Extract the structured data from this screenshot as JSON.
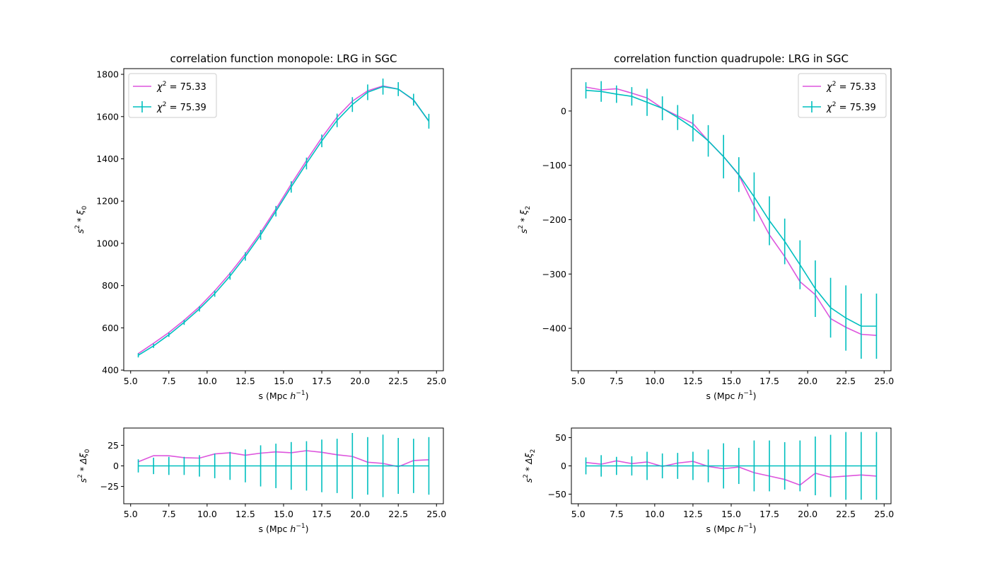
{
  "chart_data": [
    {
      "type": "line",
      "title": "correlation function monopole: LRG in SGC",
      "xlabel_html": "s (Mpc <tspan font-style='italic'>h</tspan><tspan dy='-6' font-size='9'>−1</tspan><tspan dy='6'>)</tspan>",
      "xlabel": "s (Mpc h^-1)",
      "ylabel": "s^2 * ξ0",
      "xlim": [
        4.55,
        25.45
      ],
      "ylim": [
        397,
        1827
      ],
      "xticks": [
        5.0,
        7.5,
        10.0,
        12.5,
        15.0,
        17.5,
        20.0,
        22.5,
        25.0
      ],
      "xtick_labels": [
        "5.0",
        "7.5",
        "10.0",
        "12.5",
        "15.0",
        "17.5",
        "20.0",
        "22.5",
        "25.0"
      ],
      "yticks": [
        400,
        600,
        800,
        1000,
        1200,
        1400,
        1600,
        1800
      ],
      "ytick_labels": [
        "400",
        "600",
        "800",
        "1000",
        "1200",
        "1400",
        "1600",
        "1800"
      ],
      "legend_position": "upper-left",
      "x": [
        5.5,
        6.5,
        7.5,
        8.5,
        9.5,
        10.5,
        11.5,
        12.5,
        13.5,
        14.5,
        15.5,
        16.5,
        17.5,
        18.5,
        19.5,
        20.5,
        21.5,
        22.5,
        23.5,
        24.5
      ],
      "series": [
        {
          "name": "χ² = 75.33",
          "color": "#dd55dd",
          "errorbars": false,
          "values": [
            478,
            527,
            578,
            636,
            700,
            775,
            858,
            950,
            1052,
            1163,
            1280,
            1392,
            1500,
            1598,
            1673,
            1722,
            1745,
            1730,
            1678,
            1578
          ]
        },
        {
          "name": "χ² = 75.39",
          "color": "#00bfbf",
          "errorbars": true,
          "values": [
            470,
            515,
            567,
            626,
            690,
            762,
            845,
            938,
            1040,
            1152,
            1267,
            1378,
            1485,
            1582,
            1657,
            1715,
            1742,
            1730,
            1680,
            1578
          ],
          "errors": [
            10,
            10,
            10,
            12,
            13,
            15,
            17,
            20,
            23,
            25,
            27,
            28,
            30,
            32,
            35,
            37,
            38,
            33,
            28,
            35
          ]
        }
      ]
    },
    {
      "type": "line",
      "title": "correlation function quadrupole: LRG in SGC",
      "xlabel": "s (Mpc h^-1)",
      "ylabel": "s^2 * ξ2",
      "xlim": [
        4.55,
        25.45
      ],
      "ylim": [
        -478,
        78
      ],
      "xticks": [
        5.0,
        7.5,
        10.0,
        12.5,
        15.0,
        17.5,
        20.0,
        22.5,
        25.0
      ],
      "xtick_labels": [
        "5.0",
        "7.5",
        "10.0",
        "12.5",
        "15.0",
        "17.5",
        "20.0",
        "22.5",
        "25.0"
      ],
      "yticks": [
        -400,
        -300,
        -200,
        -100,
        0
      ],
      "ytick_labels": [
        "−400",
        "−300",
        "−200",
        "−100",
        "0"
      ],
      "legend_position": "upper-right",
      "x": [
        5.5,
        6.5,
        7.5,
        8.5,
        9.5,
        10.5,
        11.5,
        12.5,
        13.5,
        14.5,
        15.5,
        16.5,
        17.5,
        18.5,
        19.5,
        20.5,
        21.5,
        22.5,
        23.5,
        24.5
      ],
      "series": [
        {
          "name": "χ² = 75.33",
          "color": "#dd55dd",
          "errorbars": false,
          "values": [
            44,
            39,
            41,
            33,
            24,
            5,
            -9,
            -23,
            -55,
            -84,
            -118,
            -175,
            -228,
            -268,
            -314,
            -338,
            -382,
            -398,
            -411,
            -413
          ]
        },
        {
          "name": "χ² = 75.39",
          "color": "#00bfbf",
          "errorbars": true,
          "values": [
            38,
            36,
            31,
            27,
            16,
            5,
            -12,
            -31,
            -55,
            -84,
            -117,
            -158,
            -202,
            -240,
            -283,
            -327,
            -362,
            -381,
            -396,
            -396
          ],
          "errors": [
            15,
            19,
            16,
            17,
            25,
            22,
            23,
            25,
            29,
            40,
            32,
            45,
            45,
            42,
            45,
            52,
            55,
            60,
            60,
            60
          ]
        }
      ]
    },
    {
      "type": "line",
      "title": "",
      "xlabel": "s (Mpc h^-1)",
      "ylabel": "s^2 * Δξ0",
      "xlim": [
        4.55,
        25.45
      ],
      "ylim": [
        -46,
        46
      ],
      "xticks": [
        5.0,
        7.5,
        10.0,
        12.5,
        15.0,
        17.5,
        20.0,
        22.5,
        25.0
      ],
      "xtick_labels": [
        "5.0",
        "7.5",
        "10.0",
        "12.5",
        "15.0",
        "17.5",
        "20.0",
        "22.5",
        "25.0"
      ],
      "yticks": [
        -25,
        0,
        25
      ],
      "ytick_labels": [
        "−25",
        "0",
        "25"
      ],
      "x": [
        5.5,
        6.5,
        7.5,
        8.5,
        9.5,
        10.5,
        11.5,
        12.5,
        13.5,
        14.5,
        15.5,
        16.5,
        17.5,
        18.5,
        19.5,
        20.5,
        21.5,
        22.5,
        23.5,
        24.5
      ],
      "series": [
        {
          "color": "#dd55dd",
          "errorbars": false,
          "values": [
            5,
            12.5,
            12.3,
            10,
            9.5,
            14.5,
            16,
            13,
            15.5,
            17,
            16,
            18.5,
            16.5,
            13.5,
            11.5,
            4.5,
            3,
            -1,
            6.5,
            7.5
          ]
        },
        {
          "color": "#00bfbf",
          "errorbars": true,
          "values": [
            0,
            0,
            0,
            0,
            0,
            0,
            0,
            0,
            0,
            0,
            0,
            0,
            0,
            0,
            0,
            0,
            0,
            0,
            0,
            0
          ],
          "errors": [
            8,
            10,
            11,
            11,
            13,
            15,
            17,
            20,
            25,
            27,
            29,
            30,
            32,
            33,
            40,
            35,
            38,
            34,
            33,
            35
          ]
        }
      ]
    },
    {
      "type": "line",
      "title": "",
      "xlabel": "s (Mpc h^-1)",
      "ylabel": "s^2 * Δξ2",
      "xlim": [
        4.55,
        25.45
      ],
      "ylim": [
        -67,
        67
      ],
      "xticks": [
        5.0,
        7.5,
        10.0,
        12.5,
        15.0,
        17.5,
        20.0,
        22.5,
        25.0
      ],
      "xtick_labels": [
        "5.0",
        "7.5",
        "10.0",
        "12.5",
        "15.0",
        "17.5",
        "20.0",
        "22.5",
        "25.0"
      ],
      "yticks": [
        -50,
        0,
        50
      ],
      "ytick_labels": [
        "−50",
        "0",
        "50"
      ],
      "x": [
        5.5,
        6.5,
        7.5,
        8.5,
        9.5,
        10.5,
        11.5,
        12.5,
        13.5,
        14.5,
        15.5,
        16.5,
        17.5,
        18.5,
        19.5,
        20.5,
        21.5,
        22.5,
        23.5,
        24.5
      ],
      "series": [
        {
          "color": "#dd55dd",
          "errorbars": false,
          "values": [
            6,
            3,
            9,
            4,
            7,
            -1,
            5,
            8,
            -1,
            -5,
            -2,
            -12,
            -18,
            -24,
            -34,
            -13,
            -20,
            -18,
            -16,
            -18
          ]
        },
        {
          "color": "#00bfbf",
          "errorbars": true,
          "values": [
            0,
            0,
            0,
            0,
            0,
            0,
            0,
            0,
            0,
            0,
            0,
            0,
            0,
            0,
            0,
            0,
            0,
            0,
            0,
            0
          ],
          "errors": [
            15,
            19,
            16,
            17,
            25,
            22,
            23,
            25,
            29,
            40,
            32,
            45,
            45,
            42,
            45,
            52,
            55,
            60,
            60,
            60
          ]
        }
      ]
    }
  ],
  "panel_texts": {
    "p0": {
      "title": "correlation function monopole: LRG in SGC",
      "legend": [
        "χ² = 75.33",
        "χ² = 75.39"
      ]
    },
    "p1": {
      "title": "correlation function quadrupole: LRG in SGC",
      "legend": [
        "χ² = 75.33",
        "χ² = 75.39"
      ]
    }
  }
}
